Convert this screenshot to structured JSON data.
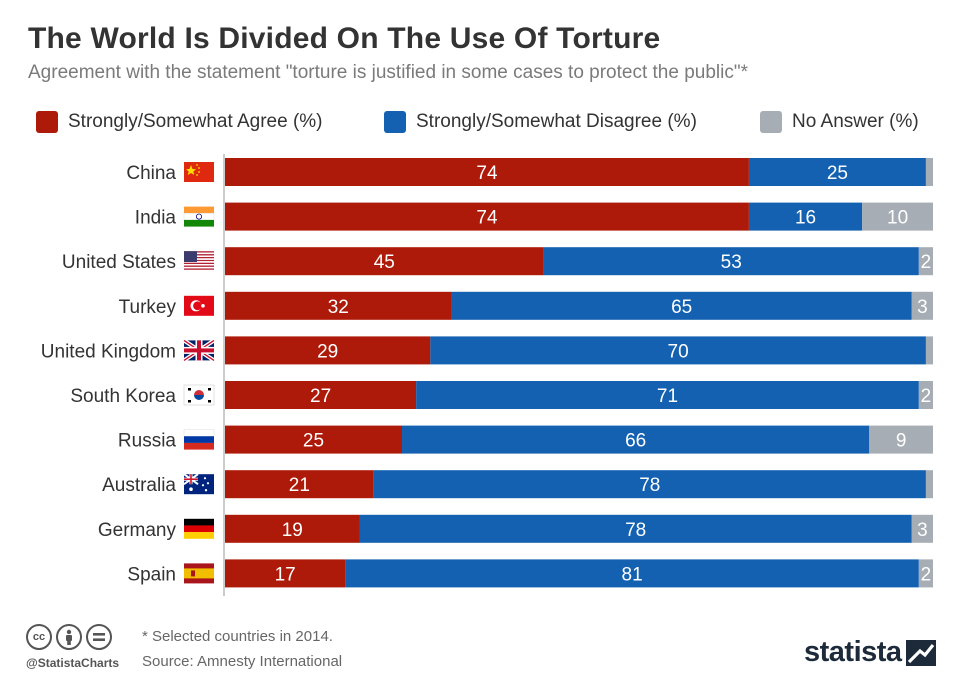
{
  "header": {
    "title": "The World Is Divided On The Use Of Torture",
    "subtitle": "Agreement with the statement \"torture is justified in some cases to protect the public\"*"
  },
  "legend": [
    {
      "label": "Strongly/Somewhat Agree (%)",
      "color": "#ae1a0a"
    },
    {
      "label": "Strongly/Somewhat Disagree (%)",
      "color": "#1361b0"
    },
    {
      "label": "No Answer (%)",
      "color": "#a6adb4"
    }
  ],
  "chart_data": {
    "type": "bar",
    "orientation": "horizontal",
    "stacked": true,
    "categories": [
      "China",
      "India",
      "United States",
      "Turkey",
      "United Kingdom",
      "South Korea",
      "Russia",
      "Australia",
      "Germany",
      "Spain"
    ],
    "flags": [
      "china-flag-icon",
      "india-flag-icon",
      "usa-flag-icon",
      "turkey-flag-icon",
      "uk-flag-icon",
      "south-korea-flag-icon",
      "russia-flag-icon",
      "australia-flag-icon",
      "germany-flag-icon",
      "spain-flag-icon"
    ],
    "series": [
      {
        "name": "Strongly/Somewhat Agree (%)",
        "color": "#ae1a0a",
        "values": [
          74,
          74,
          45,
          32,
          29,
          27,
          25,
          21,
          19,
          17
        ]
      },
      {
        "name": "Strongly/Somewhat Disagree (%)",
        "color": "#1361b0",
        "values": [
          25,
          16,
          53,
          65,
          70,
          71,
          66,
          78,
          78,
          81
        ]
      },
      {
        "name": "No Answer (%)",
        "color": "#a6adb4",
        "values": [
          1,
          10,
          2,
          3,
          1,
          2,
          9,
          1,
          3,
          2
        ]
      }
    ],
    "xlim": [
      0,
      100
    ],
    "grid": false
  },
  "footer": {
    "handle": "@StatistaCharts",
    "note": "* Selected countries in 2014.",
    "source": "Source: Amnesty International",
    "brand": "statista"
  }
}
